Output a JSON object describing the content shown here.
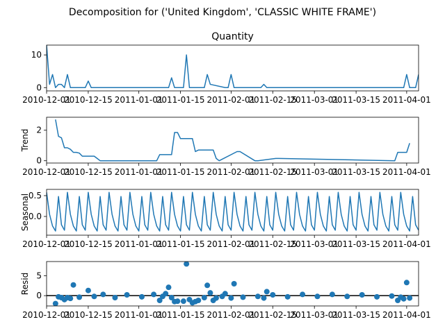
{
  "suptitle": "Decomposition for ('United Kingdom', 'CLASSIC WHITE FRAME')",
  "colors": {
    "line": "#1f77b4",
    "axis": "#000000",
    "zero_line": "#000000"
  },
  "chart_data": [
    {
      "type": "line",
      "title": "Quantity",
      "ylabel": "",
      "ylim": [
        -1,
        13
      ],
      "yticks": [
        "0",
        "10"
      ],
      "yticks_values": [
        0,
        10
      ],
      "xlim": [
        "2010-12-01",
        "2011-04-05"
      ],
      "xticks": [
        "2010-12-01",
        "2010-12-15",
        "2011-01-01",
        "2011-01-15",
        "2011-02-01",
        "2011-02-15",
        "2011-03-01",
        "2011-03-15",
        "2011-04-01"
      ],
      "x": [
        "2010-12-01",
        "2010-12-02",
        "2010-12-03",
        "2010-12-04",
        "2010-12-05",
        "2010-12-06",
        "2010-12-07",
        "2010-12-08",
        "2010-12-09",
        "2010-12-14",
        "2010-12-15",
        "2010-12-16",
        "2011-01-11",
        "2011-01-12",
        "2011-01-13",
        "2011-01-16",
        "2011-01-17",
        "2011-01-18",
        "2011-01-23",
        "2011-01-24",
        "2011-01-25",
        "2011-01-30",
        "2011-01-31",
        "2011-02-01",
        "2011-02-02",
        "2011-02-03",
        "2011-02-11",
        "2011-02-12",
        "2011-02-13",
        "2011-03-31",
        "2011-04-01",
        "2011-04-02",
        "2011-04-04",
        "2011-04-05"
      ],
      "series": [
        {
          "values": [
            13,
            1,
            4,
            0,
            1,
            1,
            0,
            4,
            0,
            0,
            2,
            0,
            0,
            3,
            0,
            0,
            10,
            0,
            0,
            4,
            1,
            0,
            0,
            4,
            0,
            0,
            0,
            1,
            0,
            0,
            4,
            0,
            0,
            4
          ]
        }
      ]
    },
    {
      "type": "line",
      "title": "",
      "ylabel": "Trend",
      "ylim": [
        -0.15,
        2.85
      ],
      "yticks": [
        "0",
        "2"
      ],
      "yticks_values": [
        0,
        2
      ],
      "xlim": [
        "2010-12-01",
        "2011-04-05"
      ],
      "xticks": [
        "2010-12-01",
        "2010-12-15",
        "2011-01-01",
        "2011-01-15",
        "2011-02-01",
        "2011-02-15",
        "2011-03-01",
        "2011-03-15",
        "2011-04-01"
      ],
      "x": [
        "2010-12-04",
        "2010-12-05",
        "2010-12-06",
        "2010-12-07",
        "2010-12-08",
        "2010-12-09",
        "2010-12-10",
        "2010-12-11",
        "2010-12-12",
        "2010-12-13",
        "2010-12-17",
        "2010-12-18",
        "2010-12-19",
        "2011-01-07",
        "2011-01-08",
        "2011-01-12",
        "2011-01-13",
        "2011-01-14",
        "2011-01-15",
        "2011-01-19",
        "2011-01-20",
        "2011-01-21",
        "2011-01-22",
        "2011-01-26",
        "2011-01-27",
        "2011-01-28",
        "2011-02-03",
        "2011-02-04",
        "2011-02-09",
        "2011-02-10",
        "2011-02-16",
        "2011-02-17",
        "2011-03-28",
        "2011-03-29",
        "2011-04-01",
        "2011-04-02"
      ],
      "series": [
        {
          "values": [
            2.7,
            1.6,
            1.5,
            0.85,
            0.85,
            0.75,
            0.55,
            0.55,
            0.5,
            0.3,
            0.3,
            0.15,
            0,
            0,
            0.4,
            0.4,
            1.85,
            1.85,
            1.45,
            1.45,
            0.6,
            0.7,
            0.7,
            0.7,
            0.15,
            0,
            0.6,
            0.6,
            0,
            0,
            0.15,
            0.15,
            0,
            0.55,
            0.55,
            1.15
          ]
        }
      ]
    },
    {
      "type": "line",
      "title": "",
      "ylabel": "Seasonal",
      "ylim": [
        -0.45,
        0.65
      ],
      "yticks": [
        "0.0",
        "0.5"
      ],
      "yticks_values": [
        0,
        0.5
      ],
      "xlim": [
        "2010-12-01",
        "2011-04-05"
      ],
      "xticks": [
        "2010-12-01",
        "2010-12-15",
        "2011-01-01",
        "2011-01-15",
        "2011-02-01",
        "2011-02-15",
        "2011-03-01",
        "2011-03-15",
        "2011-04-01"
      ],
      "x_start": "2010-12-01",
      "x_end": "2011-04-05",
      "period_days": 7,
      "series": [
        {
          "values": [
            0.58,
            0.05,
            -0.23,
            -0.35,
            0.48,
            -0.2,
            -0.33
          ]
        }
      ]
    },
    {
      "type": "scatter",
      "title": "",
      "ylabel": "Resid",
      "ylim": [
        -2.6,
        8.6
      ],
      "yticks": [
        "0",
        "5"
      ],
      "yticks_values": [
        0,
        5
      ],
      "zero_line": true,
      "xlim": [
        "2010-12-01",
        "2011-04-05"
      ],
      "xticks": [
        "2010-12-01",
        "2010-12-15",
        "2011-01-01",
        "2011-01-15",
        "2011-02-01",
        "2011-02-15",
        "2011-03-01",
        "2011-03-15",
        "2011-04-01"
      ],
      "x": [
        "2010-12-04",
        "2010-12-05",
        "2010-12-06",
        "2010-12-07",
        "2010-12-08",
        "2010-12-09",
        "2010-12-10",
        "2010-12-12",
        "2010-12-15",
        "2010-12-17",
        "2010-12-20",
        "2010-12-24",
        "2010-12-28",
        "2011-01-02",
        "2011-01-06",
        "2011-01-08",
        "2011-01-09",
        "2011-01-10",
        "2011-01-11",
        "2011-01-12",
        "2011-01-13",
        "2011-01-14",
        "2011-01-16",
        "2011-01-17",
        "2011-01-18",
        "2011-01-19",
        "2011-01-20",
        "2011-01-21",
        "2011-01-23",
        "2011-01-24",
        "2011-01-25",
        "2011-01-26",
        "2011-01-27",
        "2011-01-29",
        "2011-01-30",
        "2011-02-01",
        "2011-02-02",
        "2011-02-05",
        "2011-02-10",
        "2011-02-12",
        "2011-02-13",
        "2011-02-15",
        "2011-02-20",
        "2011-02-25",
        "2011-03-02",
        "2011-03-07",
        "2011-03-12",
        "2011-03-17",
        "2011-03-22",
        "2011-03-27",
        "2011-03-29",
        "2011-03-30",
        "2011-03-31",
        "2011-04-01",
        "2011-04-02"
      ],
      "series": [
        {
          "values": [
            -2,
            -0.3,
            -0.5,
            -1,
            -0.5,
            -0.7,
            2.7,
            -0.4,
            1.3,
            -0.2,
            0.3,
            -0.5,
            0.2,
            -0.3,
            0.3,
            -1.2,
            -0.2,
            0.5,
            2.1,
            -0.5,
            -1.5,
            -1.4,
            -1.4,
            8,
            -1,
            -1.8,
            -1.5,
            -1.2,
            -0.5,
            2.6,
            0.7,
            -1.2,
            -0.6,
            -0.2,
            0.5,
            -0.6,
            3,
            -0.4,
            -0.2,
            -0.6,
            1,
            0.2,
            -0.3,
            0.3,
            -0.2,
            0.3,
            -0.2,
            0.2,
            -0.3,
            -0.1,
            -1.2,
            -0.4,
            -0.8,
            3.3,
            -0.6
          ]
        }
      ]
    }
  ]
}
